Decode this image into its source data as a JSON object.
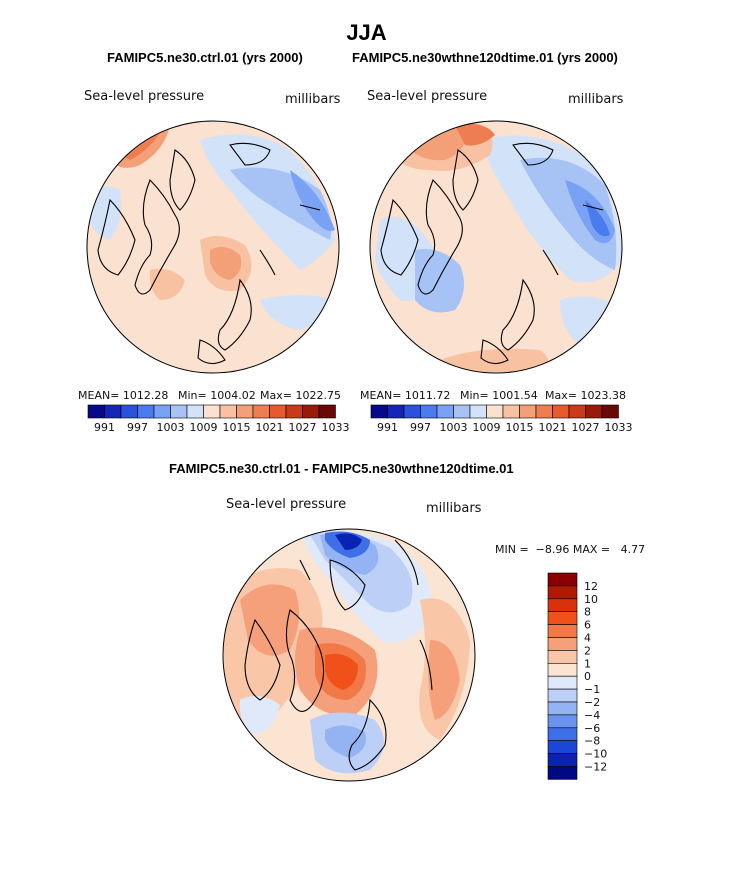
{
  "title": "JJA",
  "panels": [
    {
      "case": "FAMIPC5.ne30.ctrl.01 (yrs 2000)",
      "field": "Sea-level pressure",
      "units": "millibars",
      "mean": "MEAN= 1012.28",
      "min": "Min= 1004.02",
      "max": "Max= 1022.75",
      "colorbar_labels": [
        "991",
        "997",
        "1003",
        "1009",
        "1015",
        "1021",
        "1027",
        "1033"
      ]
    },
    {
      "case": "FAMIPC5.ne30wthne120dtime.01 (yrs 2000)",
      "field": "Sea-level pressure",
      "units": "millibars",
      "mean": "MEAN= 1011.72",
      "min": "Min= 1001.54",
      "max": "Max= 1023.38",
      "colorbar_labels": [
        "991",
        "997",
        "1003",
        "1009",
        "1015",
        "1021",
        "1027",
        "1033"
      ]
    }
  ],
  "diff": {
    "title": "FAMIPC5.ne30.ctrl.01 - FAMIPC5.ne30wthne120dtime.01",
    "field": "Sea-level pressure",
    "units": "millibars",
    "minmax": "MIN =  −8.96 MAX =   4.77",
    "colorbar_labels": [
      "12",
      "10",
      "8",
      "6",
      "4",
      "2",
      "1",
      "0",
      "−1",
      "−2",
      "−4",
      "−6",
      "−8",
      "−10",
      "−12"
    ]
  },
  "colors": {
    "abs_scale": [
      "#08088a",
      "#1525b8",
      "#2a52dc",
      "#4a7cf0",
      "#7aa2f4",
      "#a7c3f5",
      "#d2e2f8",
      "#fbe1cf",
      "#f8c1a2",
      "#f3a079",
      "#ee7e52",
      "#e65a2d",
      "#c83a1a",
      "#9a1a0a",
      "#6a0805"
    ],
    "diff_scale": [
      "#8a0000",
      "#b01a05",
      "#d8320d",
      "#f0501a",
      "#f27848",
      "#f5a07a",
      "#f9c7a8",
      "#fce4d2",
      "#dfe9fa",
      "#bccff6",
      "#93b3f2",
      "#6a93ee",
      "#3f6fe6",
      "#1c46d8",
      "#0a23b0",
      "#000a80"
    ]
  }
}
